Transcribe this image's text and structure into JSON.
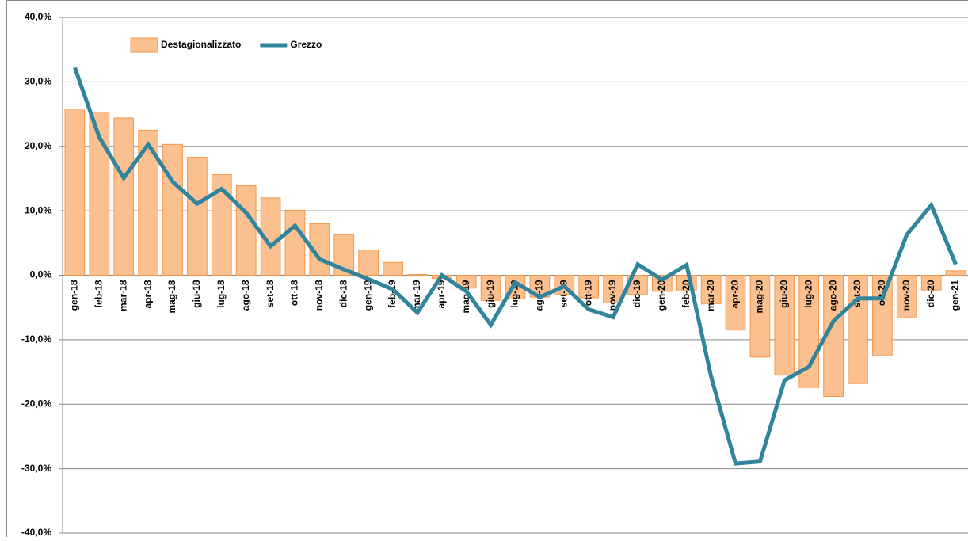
{
  "chart_data": {
    "type": "bar-line",
    "categories": [
      "gen-18",
      "feb-18",
      "mar-18",
      "apr-18",
      "mag-18",
      "giu-18",
      "lug-18",
      "ago-18",
      "set-18",
      "ott-18",
      "nov-18",
      "dic-18",
      "gen-19",
      "feb-19",
      "mar-19",
      "apr-19",
      "mag-19",
      "giu-19",
      "lug-19",
      "ago-19",
      "set-19",
      "ott-19",
      "nov-19",
      "dic-19",
      "gen-20",
      "feb-20",
      "mar-20",
      "apr-20",
      "mag-20",
      "giu-20",
      "lug-20",
      "ago-20",
      "set-20",
      "ott-20",
      "nov-20",
      "dic-20",
      "gen-21"
    ],
    "series": [
      {
        "name": "Destagionalizzato",
        "type": "bar",
        "color": "#fac090",
        "values": [
          25.8,
          25.3,
          24.4,
          22.5,
          20.3,
          18.3,
          15.6,
          13.9,
          12.0,
          10.1,
          8.0,
          6.3,
          3.9,
          2.0,
          0.1,
          -0.5,
          -2.0,
          -3.9,
          -3.7,
          -3.4,
          -3.0,
          -3.5,
          -4.3,
          -3.0,
          -2.5,
          -2.3,
          -4.4,
          -8.5,
          -12.7,
          -15.5,
          -17.4,
          -18.8,
          -16.8,
          -12.5,
          -6.6,
          -2.3,
          0.7
        ]
      },
      {
        "name": "Grezzo",
        "type": "line",
        "color": "#31849b",
        "values": [
          32.2,
          21.4,
          15.1,
          20.3,
          14.5,
          11.1,
          13.4,
          9.7,
          4.5,
          7.7,
          2.5,
          0.9,
          -0.6,
          -2.2,
          -5.8,
          0.0,
          -2.5,
          -7.7,
          -1.1,
          -3.4,
          -1.7,
          -5.3,
          -6.5,
          1.7,
          -0.7,
          1.6,
          -15.7,
          -29.2,
          -28.9,
          -16.3,
          -14.2,
          -7.1,
          -3.6,
          -3.6,
          6.3,
          10.9,
          1.7
        ]
      }
    ],
    "ylim": [
      -40,
      40
    ],
    "yticks": [
      {
        "value": -40,
        "label": "-40,0%"
      },
      {
        "value": -30,
        "label": "-30,0%"
      },
      {
        "value": -20,
        "label": "-20,0%"
      },
      {
        "value": -10,
        "label": "-10,0%"
      },
      {
        "value": 0,
        "label": "0,0%"
      },
      {
        "value": 10,
        "label": "10,0%"
      },
      {
        "value": 20,
        "label": "20,0%"
      },
      {
        "value": 30,
        "label": "30,0%"
      },
      {
        "value": 40,
        "label": "40,0%"
      }
    ],
    "grid": true,
    "legend": "top-left"
  }
}
